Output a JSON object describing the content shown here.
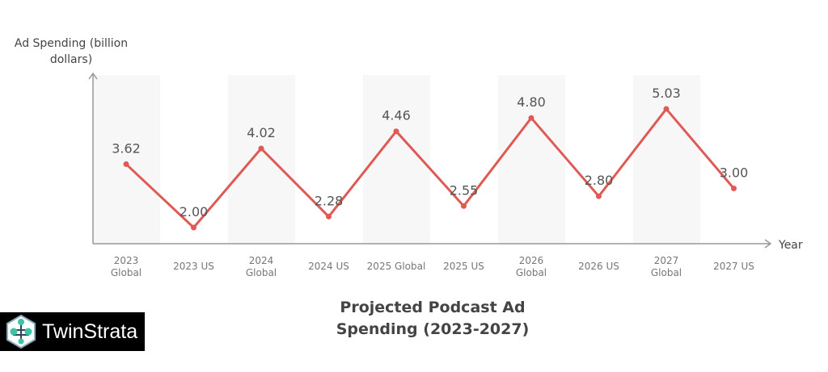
{
  "chart_data": {
    "type": "line",
    "title": "Projected Podcast Ad Spending (2023-2027)",
    "xlabel": "Year",
    "ylabel": "Ad Spending (billion dollars)",
    "ylabel_lines": [
      "Ad Spending (billion",
      "dollars)"
    ],
    "categories": [
      "2023 Global",
      "2023 US",
      "2024 Global",
      "2024 US",
      "2025 Global",
      "2025 US",
      "2026 Global",
      "2026 US",
      "2027 Global",
      "2027 US"
    ],
    "category_lines": [
      [
        "2023",
        "Global"
      ],
      [
        "2023 US"
      ],
      [
        "2024",
        "Global"
      ],
      [
        "2024 US"
      ],
      [
        "2025 Global"
      ],
      [
        "2025 US"
      ],
      [
        "2026",
        "Global"
      ],
      [
        "2026 US"
      ],
      [
        "2027",
        "Global"
      ],
      [
        "2027 US"
      ]
    ],
    "values": [
      3.62,
      2.0,
      4.02,
      2.28,
      4.46,
      2.55,
      4.8,
      2.8,
      5.03,
      3.0
    ],
    "value_labels": [
      "3.62",
      "2.00",
      "4.02",
      "2.28",
      "4.46",
      "2.55",
      "4.80",
      "2.80",
      "5.03",
      "3.00"
    ],
    "line_color": "#e05a55",
    "band_color": "#f7f7f7",
    "grid": false,
    "legend": "none"
  },
  "logo": {
    "text": "TwinStrata",
    "icon": "network-hexagon-icon"
  }
}
